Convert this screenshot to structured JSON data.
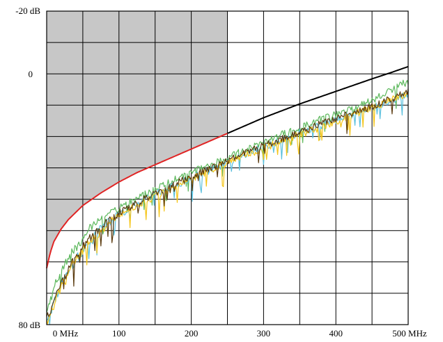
{
  "chart_data": {
    "type": "line",
    "title": "",
    "xlabel": "",
    "ylabel": "",
    "xlim": [
      0,
      500
    ],
    "ylim": [
      -20,
      80
    ],
    "y_inverted": true,
    "grid": true,
    "x_ticks": [
      {
        "value": 0,
        "label": "0 MHz"
      },
      {
        "value": 100,
        "label": "100"
      },
      {
        "value": 200,
        "label": "200"
      },
      {
        "value": 300,
        "label": "300"
      },
      {
        "value": 400,
        "label": "400"
      },
      {
        "value": 500,
        "label": "500 MHz"
      }
    ],
    "y_ticks": [
      {
        "value": -20,
        "label": "-20 dB"
      },
      {
        "value": 0,
        "label": "0"
      },
      {
        "value": 80,
        "label": "80 dB"
      }
    ],
    "x_grid_step": 50,
    "y_grid_step": 10,
    "shaded_region": {
      "x_range": [
        0,
        250
      ],
      "color": "#c7c7c7",
      "boundary": "limit curve"
    },
    "limit_curve": {
      "x": [
        0,
        5,
        10,
        20,
        30,
        50,
        75,
        100,
        125,
        150,
        175,
        200,
        225,
        250,
        275,
        300,
        325,
        350,
        375,
        400,
        425,
        450,
        475,
        500
      ],
      "y": [
        62,
        57,
        53.5,
        49.5,
        46.5,
        42,
        38,
        34.5,
        31.5,
        29,
        26.5,
        24,
        21.5,
        19,
        16.5,
        14,
        11.8,
        9.6,
        7.6,
        5.6,
        3.6,
        1.6,
        -0.3,
        -2.3
      ],
      "colors": {
        "shaded_segment": "#e02424",
        "open_segment": "#000000"
      }
    },
    "series": [
      {
        "color": "#5cb85c",
        "x": [
          0,
          5,
          10,
          20,
          30,
          40,
          50,
          60,
          70,
          80,
          90,
          100,
          120,
          140,
          160,
          180,
          200,
          225,
          250,
          275,
          300,
          325,
          350,
          375,
          400,
          425,
          450,
          475,
          500
        ],
        "y": [
          77,
          72,
          68,
          62,
          58,
          55,
          52,
          49,
          47,
          45,
          44,
          42.5,
          40,
          37.5,
          35.5,
          33,
          31,
          29,
          26.5,
          24,
          21.5,
          19,
          17,
          14.5,
          12.5,
          10.5,
          8,
          5,
          2
        ]
      },
      {
        "color": "#5bc0de",
        "x": [
          0,
          5,
          10,
          20,
          30,
          40,
          50,
          60,
          70,
          80,
          90,
          100,
          120,
          140,
          160,
          180,
          200,
          225,
          250,
          275,
          300,
          325,
          350,
          375,
          400,
          425,
          450,
          475,
          500
        ],
        "y": [
          79,
          76,
          72,
          67,
          63,
          59,
          56,
          53,
          50,
          48,
          46,
          44.5,
          42,
          39.5,
          37,
          35,
          33,
          30.5,
          28,
          25.5,
          23,
          21,
          18.5,
          16.5,
          14.5,
          12.5,
          10.5,
          8.5,
          6
        ]
      },
      {
        "color": "#f5c518",
        "x": [
          0,
          5,
          10,
          20,
          30,
          40,
          50,
          60,
          70,
          80,
          90,
          100,
          120,
          140,
          160,
          180,
          200,
          225,
          250,
          275,
          300,
          325,
          350,
          375,
          400,
          425,
          450,
          475,
          500
        ],
        "y": [
          79,
          77,
          73,
          68,
          63,
          59,
          56,
          53,
          51,
          49,
          46.5,
          45,
          42,
          40,
          37.5,
          35.5,
          33,
          30.5,
          28,
          25.5,
          23.5,
          21,
          19,
          17,
          15,
          12.5,
          10.5,
          8,
          6
        ]
      },
      {
        "color": "#5a3a0e",
        "x": [
          0,
          5,
          10,
          20,
          30,
          40,
          50,
          60,
          70,
          80,
          90,
          100,
          120,
          140,
          160,
          180,
          200,
          225,
          250,
          275,
          300,
          325,
          350,
          375,
          400,
          425,
          450,
          475,
          500
        ],
        "y": [
          78,
          75,
          71,
          66,
          62,
          58,
          55,
          52,
          50,
          47.5,
          46,
          44,
          41.5,
          39,
          37,
          34.5,
          32.5,
          30,
          27.5,
          25,
          22.5,
          20.5,
          18.5,
          16,
          14,
          12,
          10,
          7.5,
          5
        ]
      }
    ]
  }
}
